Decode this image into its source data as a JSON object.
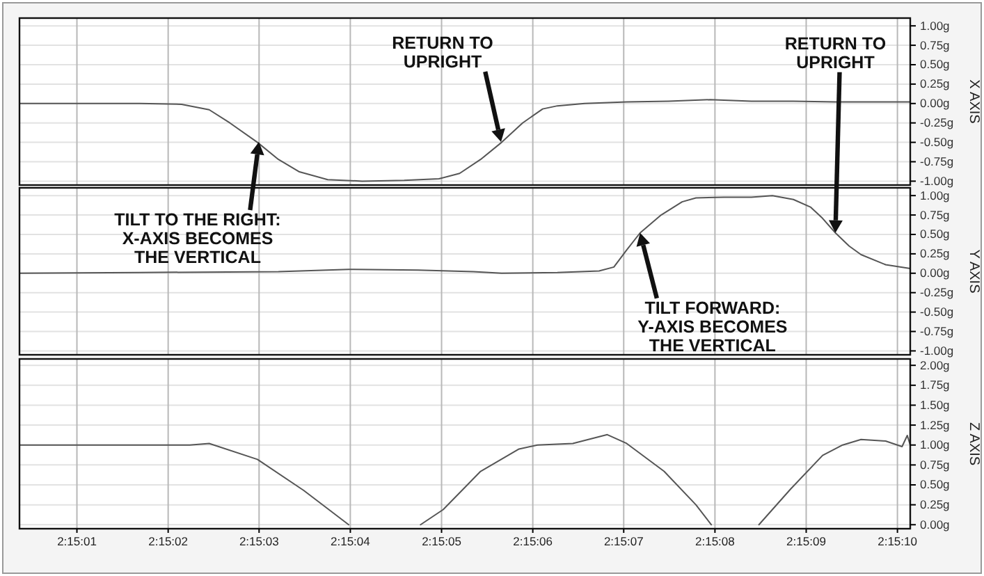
{
  "chart_data": [
    {
      "type": "line",
      "ylabel": "X AXIS",
      "xlim": [
        2.250103,
        2.252817
      ],
      "ylim": [
        -1.05,
        1.1
      ],
      "grid": true,
      "tick_labels": "y",
      "xticks": [
        {
          "value": 2.250278,
          "label": null
        },
        {
          "value": 2.250556,
          "label": null
        },
        {
          "value": 2.250833,
          "label": null
        },
        {
          "value": 2.251111,
          "label": null
        },
        {
          "value": 2.251389,
          "label": null
        },
        {
          "value": 2.251667,
          "label": null
        },
        {
          "value": 2.251944,
          "label": null
        },
        {
          "value": 2.252222,
          "label": null
        },
        {
          "value": 2.2525,
          "label": null
        },
        {
          "value": 2.252778,
          "label": null
        }
      ],
      "yticks": [
        {
          "value": 1,
          "label": "1.00g"
        },
        {
          "value": 0.75,
          "label": "0.75g"
        },
        {
          "value": 0.5,
          "label": "0.50g"
        },
        {
          "value": 0.25,
          "label": "0.25g"
        },
        {
          "value": 0,
          "label": "0.00g"
        },
        {
          "value": -0.25,
          "label": "-0.25g"
        },
        {
          "value": -0.5,
          "label": "-0.50g"
        },
        {
          "value": -0.75,
          "label": "-0.75g"
        },
        {
          "value": -1,
          "label": "-1.00g"
        }
      ],
      "series": [
        {
          "color": "#555555",
          "x": [
            2.250103,
            2.250469,
            2.250597,
            2.250681,
            2.250744,
            2.250828,
            2.250892,
            2.250956,
            2.251042,
            2.251147,
            2.251275,
            2.251381,
            2.251444,
            2.251508,
            2.251572,
            2.251636,
            2.251697,
            2.251742,
            2.251825,
            2.251953,
            2.252081,
            2.252208,
            2.252333,
            2.252461,
            2.252589,
            2.252817
          ],
          "values": [
            0,
            0,
            -0.01,
            -0.08,
            -0.25,
            -0.5,
            -0.72,
            -0.88,
            -0.98,
            -1,
            -0.99,
            -0.97,
            -0.9,
            -0.72,
            -0.5,
            -0.25,
            -0.07,
            -0.03,
            0,
            0.02,
            0.03,
            0.05,
            0.03,
            0.03,
            0.02,
            0.02
          ]
        }
      ],
      "annotations": [
        "TILT TO THE RIGHT:\nX-AXIS BECOMES\nTHE VERTICAL",
        "RETURN TO\nUPRIGHT"
      ]
    },
    {
      "type": "line",
      "ylabel": "Y AXIS",
      "xlim": [
        2.250103,
        2.252817
      ],
      "ylim": [
        -1.05,
        1.1
      ],
      "grid": true,
      "tick_labels": "y",
      "xticks": [
        {
          "value": 2.250278,
          "label": null
        },
        {
          "value": 2.250556,
          "label": null
        },
        {
          "value": 2.250833,
          "label": null
        },
        {
          "value": 2.251111,
          "label": null
        },
        {
          "value": 2.251389,
          "label": null
        },
        {
          "value": 2.251667,
          "label": null
        },
        {
          "value": 2.251944,
          "label": null
        },
        {
          "value": 2.252222,
          "label": null
        },
        {
          "value": 2.2525,
          "label": null
        },
        {
          "value": 2.252778,
          "label": null
        }
      ],
      "yticks": [
        {
          "value": 1,
          "label": "1.00g"
        },
        {
          "value": 0.75,
          "label": "0.75g"
        },
        {
          "value": 0.5,
          "label": "0.50g"
        },
        {
          "value": 0.25,
          "label": "0.25g"
        },
        {
          "value": 0,
          "label": "0.00g"
        },
        {
          "value": -0.25,
          "label": "-0.25g"
        },
        {
          "value": -0.5,
          "label": "-0.50g"
        },
        {
          "value": -0.75,
          "label": "-0.75g"
        },
        {
          "value": -1,
          "label": "-1.00g"
        }
      ],
      "series": [
        {
          "color": "#555555",
          "x": [
            2.250103,
            2.250469,
            2.250892,
            2.251106,
            2.251317,
            2.251486,
            2.251572,
            2.251742,
            2.251869,
            2.251914,
            2.251953,
            2.251994,
            2.252058,
            2.252122,
            2.252164,
            2.25225,
            2.252333,
            2.252397,
            2.252461,
            2.252514,
            2.252547,
            2.252589,
            2.252631,
            2.252667,
            2.252742,
            2.252817
          ],
          "values": [
            0,
            0.01,
            0.02,
            0.05,
            0.04,
            0.02,
            0,
            0.01,
            0.03,
            0.08,
            0.3,
            0.52,
            0.75,
            0.92,
            0.97,
            0.98,
            0.98,
            1,
            0.95,
            0.85,
            0.72,
            0.52,
            0.35,
            0.24,
            0.11,
            0.06
          ]
        }
      ],
      "annotations": [
        {
          "text": "TILT FORWARD:\nY-AXIS BECOMES\nTHE VERTICAL",
          "x": 2.251994,
          "y": 0.52
        },
        {
          "text": "RETURN TO\nUPRIGHT",
          "x": 2.252589,
          "y": 0.52
        }
      ]
    },
    {
      "type": "line",
      "ylabel": "Z AXIS",
      "xlim": [
        2.250103,
        2.252817
      ],
      "ylim": [
        -0.05,
        2.08
      ],
      "grid": true,
      "xticks": [
        {
          "value": 2.250278,
          "label": "2:15:01"
        },
        {
          "value": 2.250556,
          "label": "2:15:02"
        },
        {
          "value": 2.250833,
          "label": "2:15:03"
        },
        {
          "value": 2.251111,
          "label": "2:15:04"
        },
        {
          "value": 2.251389,
          "label": "2:15:05"
        },
        {
          "value": 2.251667,
          "label": "2:15:06"
        },
        {
          "value": 2.251944,
          "label": "2:15:07"
        },
        {
          "value": 2.252222,
          "label": "2:15:08"
        },
        {
          "value": 2.2525,
          "label": "2:15:09"
        },
        {
          "value": 2.252778,
          "label": "2:15:10"
        }
      ],
      "yticks": [
        {
          "value": 2,
          "label": "2.00g"
        },
        {
          "value": 1.75,
          "label": "1.75g"
        },
        {
          "value": 1.5,
          "label": "1.50g"
        },
        {
          "value": 1.25,
          "label": "1.25g"
        },
        {
          "value": 1,
          "label": "1.00g"
        },
        {
          "value": 0.75,
          "label": "0.75g"
        },
        {
          "value": 0.5,
          "label": "0.50g"
        },
        {
          "value": 0.25,
          "label": "0.25g"
        },
        {
          "value": 0,
          "label": "0.00g"
        }
      ],
      "series": [
        {
          "color": "#555555",
          "x": [
            2.250103,
            2.250469,
            2.250622,
            2.250681,
            2.250828,
            2.250969,
            2.251106,
            2.251211,
            2.251325,
            2.251394,
            2.251508,
            2.251625,
            2.251681,
            2.251789,
            2.251894,
            2.251953,
            2.252067,
            2.252164,
            2.252211,
            2.252283,
            2.252356,
            2.252453,
            2.25255,
            2.252611,
            2.252667,
            2.252742,
            2.252792,
            2.252808,
            2.252817
          ],
          "values": [
            1,
            1,
            1,
            1.02,
            0.82,
            0.43,
            0,
            null,
            0,
            0.19,
            0.67,
            0.95,
            1,
            1.02,
            1.13,
            1.02,
            0.67,
            0.25,
            0,
            null,
            0,
            0.45,
            0.87,
            1,
            1.07,
            1.05,
            0.98,
            1.12,
            1
          ]
        }
      ]
    }
  ]
}
